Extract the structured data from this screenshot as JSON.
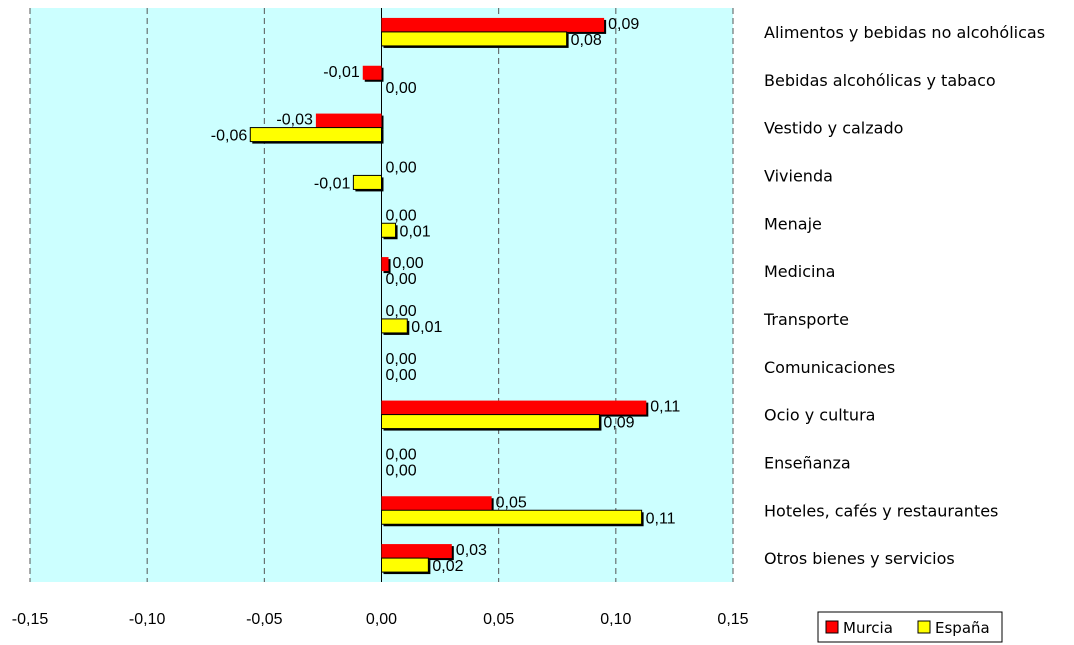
{
  "chart_data": {
    "type": "bar",
    "orientation": "horizontal",
    "categories": [
      "Alimentos y bebidas no alcohólicas",
      "Bebidas alcohólicas y tabaco",
      "Vestido y calzado",
      "Vivienda",
      "Menaje",
      "Medicina",
      "Transporte",
      "Comunicaciones",
      "Ocio y cultura",
      "Enseñanza",
      "Hoteles, cafés y restaurantes",
      "Otros bienes y servicios"
    ],
    "series": [
      {
        "name": "Murcia",
        "color": "#ff0000",
        "values": [
          0.095,
          -0.008,
          -0.028,
          0.0,
          0.0,
          0.003,
          0.0,
          0.0,
          0.113,
          0.0,
          0.047,
          0.03
        ],
        "labels": [
          "0,09",
          "-0,01",
          "-0,03",
          "0,00",
          "0,00",
          "0,00",
          "0,00",
          "0,00",
          "0,11",
          "0,00",
          "0,05",
          "0,03"
        ]
      },
      {
        "name": "España",
        "color": "#ffff00",
        "values": [
          0.079,
          0.0,
          -0.056,
          -0.012,
          0.006,
          0.0,
          0.011,
          0.0,
          0.093,
          0.0,
          0.111,
          0.02
        ],
        "labels": [
          "0,08",
          "0,00",
          "-0,06",
          "-0,01",
          "0,01",
          "0,00",
          "0,01",
          "0,00",
          "0,09",
          "0,00",
          "0,11",
          "0,02"
        ]
      }
    ],
    "xlim": [
      -0.15,
      0.15
    ],
    "xticks": [
      -0.15,
      -0.1,
      -0.05,
      0.0,
      0.05,
      0.1,
      0.15
    ],
    "xtick_labels": [
      "-0,15",
      "-0,10",
      "-0,05",
      "0,00",
      "0,05",
      "0,10",
      "0,15"
    ],
    "grid": "vertical dashed",
    "legend": {
      "placement": "bottom-right",
      "entries": [
        "Murcia",
        "España"
      ]
    },
    "plot_background": "#ccffff"
  }
}
